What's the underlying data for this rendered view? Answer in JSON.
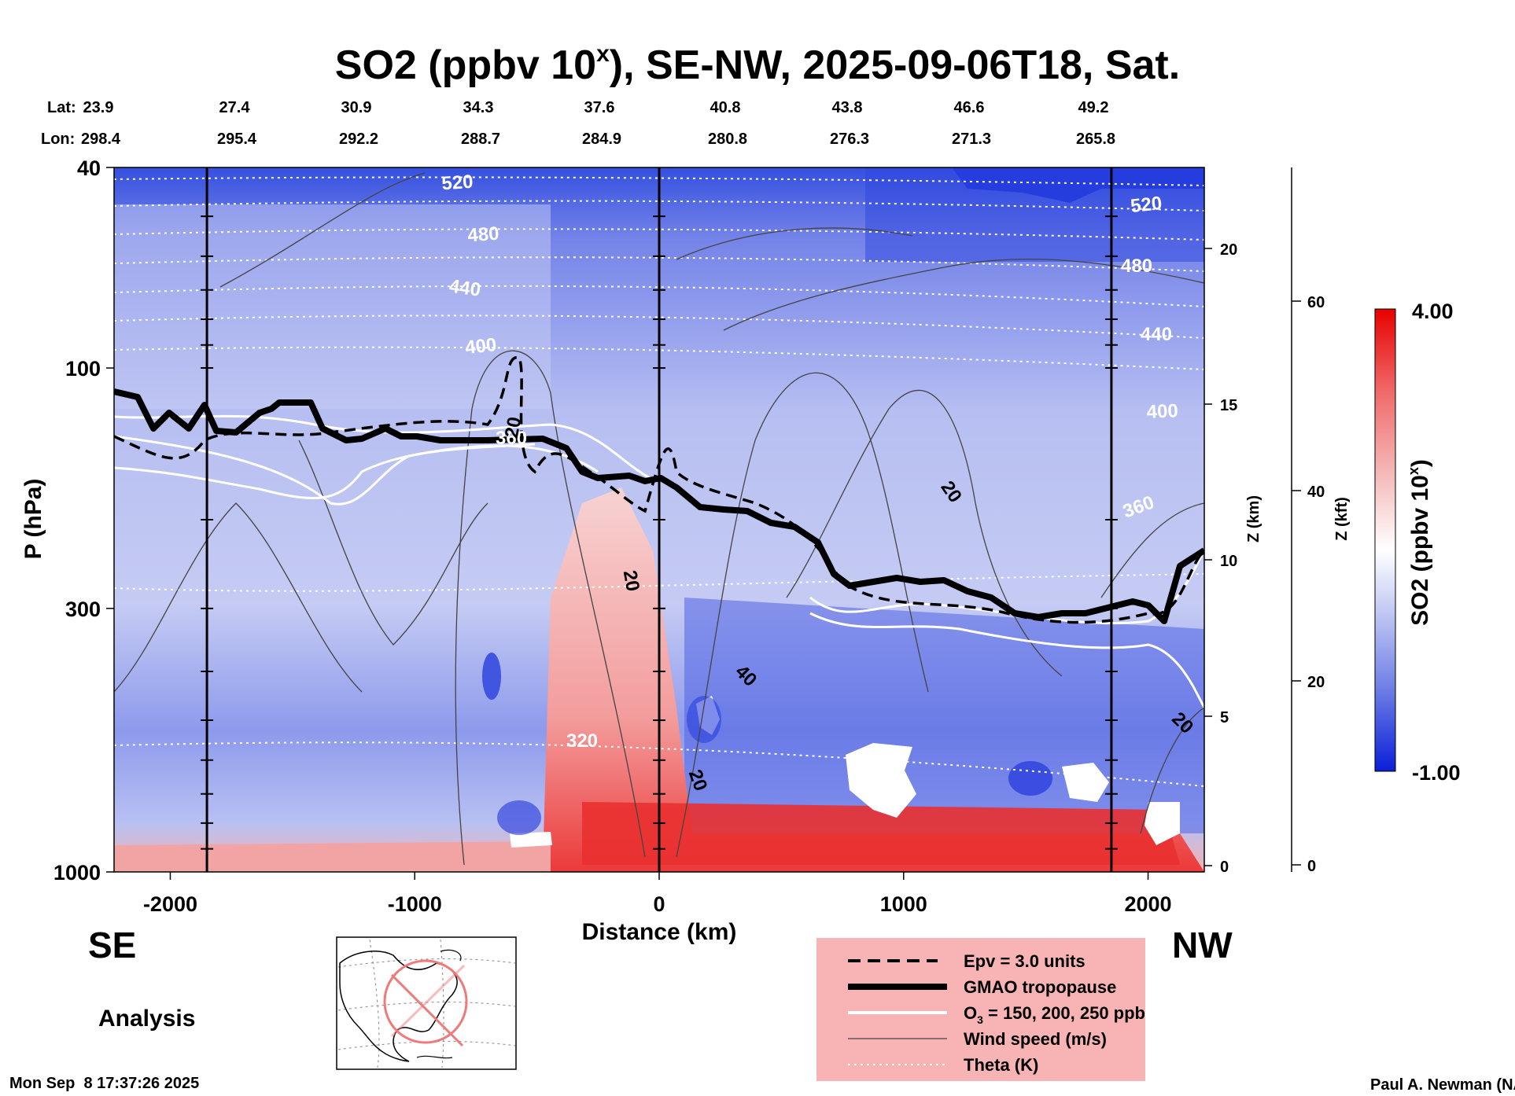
{
  "chart_data": {
    "type": "heatmap",
    "title_main": "SO2 (ppbv 10",
    "title_sup": "x",
    "title_rest": "), SE-NW, 2025-09-06T18, Sat.",
    "lat_label": "Lat:",
    "lon_label": "Lon:",
    "lat_values": [
      "23.9",
      "27.4",
      "30.9",
      "34.3",
      "37.6",
      "40.8",
      "43.8",
      "46.6",
      "49.2"
    ],
    "lon_values": [
      "298.4",
      "295.4",
      "292.2",
      "288.7",
      "284.9",
      "280.8",
      "276.3",
      "271.3",
      "265.8"
    ],
    "xlabel": "Distance (km)",
    "x_ticks": [
      -2000,
      -1000,
      0,
      1000,
      2000
    ],
    "x_tick_labels": [
      "-2000",
      "-1000",
      "0",
      "1000",
      "2000"
    ],
    "xlim": [
      -2230,
      2230
    ],
    "ylabel": "P (hPa)",
    "y_log_scale": true,
    "ylim": [
      1000,
      40
    ],
    "y_ticks": [
      40,
      100,
      300,
      1000
    ],
    "y_tick_labels": [
      "40",
      "100",
      "300",
      "1000"
    ],
    "z_km_label": "Z (km)",
    "z_km_ticks": [
      "0",
      "5",
      "10",
      "15",
      "20"
    ],
    "z_kft_label": "Z (kft)",
    "z_kft_ticks": [
      "0",
      "20",
      "40",
      "60"
    ],
    "vertical_lines_km": [
      -1850,
      0,
      1850
    ],
    "left_end": "SE",
    "right_end": "NW",
    "colorbar": {
      "label_main": "SO2 (ppbv 10",
      "label_sup": "x",
      "label_rest": ")",
      "max_label": "4.00",
      "min_label": "-1.00",
      "min": -1.0,
      "max": 4.0,
      "colors": [
        "#0a1fd8",
        "#6f7fe6",
        "#c9cff4",
        "#ffffff",
        "#f6c3c3",
        "#f06a6a",
        "#e80000"
      ]
    },
    "theta_contour_labels": [
      "520",
      "480",
      "440",
      "400",
      "360",
      "320",
      "520",
      "480",
      "440",
      "400",
      "360"
    ],
    "wind_contour_labels": [
      "20",
      "20",
      "20",
      "40",
      "20",
      "20"
    ],
    "legend": {
      "entries": [
        {
          "style": "dashed-thick",
          "label": "Epv = 3.0 units"
        },
        {
          "style": "solid-thick",
          "label": "GMAO tropopause"
        },
        {
          "style": "white",
          "label_main": "O",
          "label_sub": "3",
          "label_rest": " = 150, 200, 250 ppb"
        },
        {
          "style": "thin",
          "label": "Wind speed (m/s)"
        },
        {
          "style": "dotted",
          "label": "Theta (K)"
        }
      ],
      "background": "#f8b4b4"
    },
    "analysis_label": "Analysis",
    "timestamp": "Mon Sep  8 17:37:26 2025",
    "credit": "Paul A. Newman (NASA"
  }
}
